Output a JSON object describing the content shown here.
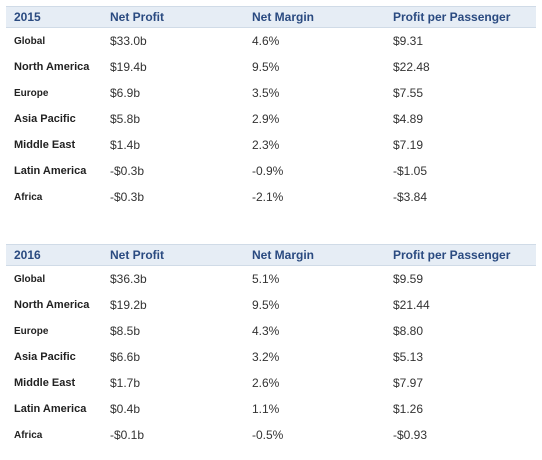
{
  "tables": [
    {
      "headers": [
        "2015",
        "Net Profit",
        "Net Margin",
        "Profit per Passenger"
      ],
      "rows": [
        [
          "Global",
          "$33.0b",
          "4.6%",
          "$9.31"
        ],
        [
          "North America",
          "$19.4b",
          "9.5%",
          "$22.48"
        ],
        [
          "Europe",
          "$6.9b",
          "3.5%",
          "$7.55"
        ],
        [
          "Asia Pacific",
          "$5.8b",
          "2.9%",
          "$4.89"
        ],
        [
          "Middle East",
          "$1.4b",
          "2.3%",
          "$7.19"
        ],
        [
          "Latin America",
          "-$0.3b",
          "-0.9%",
          "-$1.05"
        ],
        [
          "Africa",
          "-$0.3b",
          "-2.1%",
          "-$3.84"
        ]
      ]
    },
    {
      "headers": [
        "2016",
        "Net Profit",
        "Net Margin",
        "Profit per Passenger"
      ],
      "rows": [
        [
          "Global",
          "$36.3b",
          "5.1%",
          "$9.59"
        ],
        [
          "North America",
          "$19.2b",
          "9.5%",
          "$21.44"
        ],
        [
          "Europe",
          "$8.5b",
          "4.3%",
          "$8.80"
        ],
        [
          "Asia Pacific",
          "$6.6b",
          "3.2%",
          "$5.13"
        ],
        [
          "Middle East",
          "$1.7b",
          "2.6%",
          "$7.97"
        ],
        [
          "Latin America",
          "$0.4b",
          "1.1%",
          "$1.26"
        ],
        [
          "Africa",
          "-$0.1b",
          "-0.5%",
          "-$0.93"
        ]
      ]
    }
  ]
}
